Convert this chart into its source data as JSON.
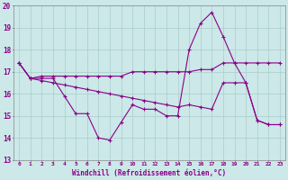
{
  "xlabel": "Windchill (Refroidissement éolien,°C)",
  "xlim": [
    -0.5,
    23.5
  ],
  "ylim": [
    13,
    20
  ],
  "yticks": [
    13,
    14,
    15,
    16,
    17,
    18,
    19,
    20
  ],
  "xticks": [
    0,
    1,
    2,
    3,
    4,
    5,
    6,
    7,
    8,
    9,
    10,
    11,
    12,
    13,
    14,
    15,
    16,
    17,
    18,
    19,
    20,
    21,
    22,
    23
  ],
  "bg_color": "#cce8e8",
  "grid_color": "#aacccc",
  "line_color": "#880088",
  "marker": "+",
  "series": [
    [
      17.4,
      16.7,
      16.7,
      16.7,
      15.9,
      15.1,
      15.1,
      14.0,
      13.9,
      14.7,
      15.5,
      15.3,
      15.3,
      15.0,
      15.0,
      18.0,
      19.2,
      19.7,
      18.6,
      17.4,
      16.5,
      14.8,
      14.6,
      14.6
    ],
    [
      17.4,
      16.7,
      16.8,
      16.8,
      16.8,
      16.8,
      16.8,
      16.8,
      16.8,
      16.8,
      17.0,
      17.0,
      17.0,
      17.0,
      17.0,
      17.0,
      17.1,
      17.1,
      17.4,
      17.4,
      17.4,
      17.4,
      17.4,
      17.4
    ],
    [
      17.4,
      16.7,
      16.6,
      16.5,
      16.4,
      16.3,
      16.2,
      16.1,
      16.0,
      15.9,
      15.8,
      15.7,
      15.6,
      15.5,
      15.4,
      15.5,
      15.4,
      15.3,
      16.5,
      16.5,
      16.5,
      14.8,
      14.6,
      14.6
    ]
  ]
}
